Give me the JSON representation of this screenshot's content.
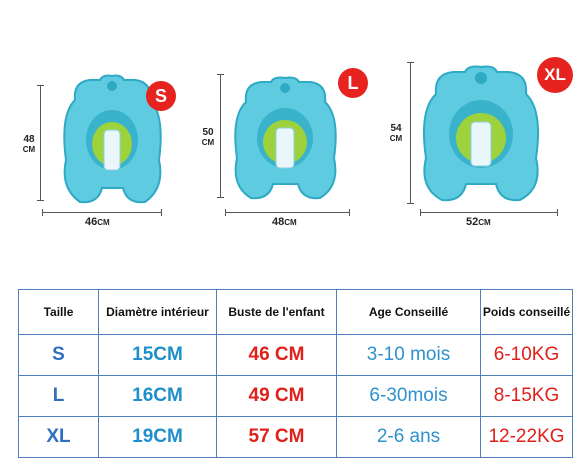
{
  "products": [
    {
      "size_badge": "S",
      "height_value": "48",
      "height_unit": "CM",
      "width_value": "46",
      "width_unit": "CM"
    },
    {
      "size_badge": "L",
      "height_value": "50",
      "height_unit": "CM",
      "width_value": "48",
      "width_unit": "CM"
    },
    {
      "size_badge": "XL",
      "height_value": "54",
      "height_unit": "CM",
      "width_value": "52",
      "width_unit": "CM"
    }
  ],
  "colors": {
    "float_body": "#5ecbe0",
    "float_dark": "#2fa9c4",
    "seat_green": "#9ed23c",
    "badge_red": "#e6231e",
    "table_border": "#4f80bd"
  },
  "table": {
    "headers": {
      "taille": "Taille",
      "diametre": "Diamètre intérieur",
      "buste": "Buste de l'enfant",
      "age": "Age Conseillé",
      "poids": "Poids conseillé"
    },
    "rows": [
      {
        "taille": "S",
        "diametre": "15CM",
        "buste": "46 CM",
        "age": "3-10 mois",
        "poids": "6-10KG"
      },
      {
        "taille": "L",
        "diametre": "16CM",
        "buste": "49 CM",
        "age": "6-30mois",
        "poids": "8-15KG"
      },
      {
        "taille": "XL",
        "diametre": "19CM",
        "buste": "57 CM",
        "age": "2-6 ans",
        "poids": "12-22KG"
      }
    ]
  }
}
